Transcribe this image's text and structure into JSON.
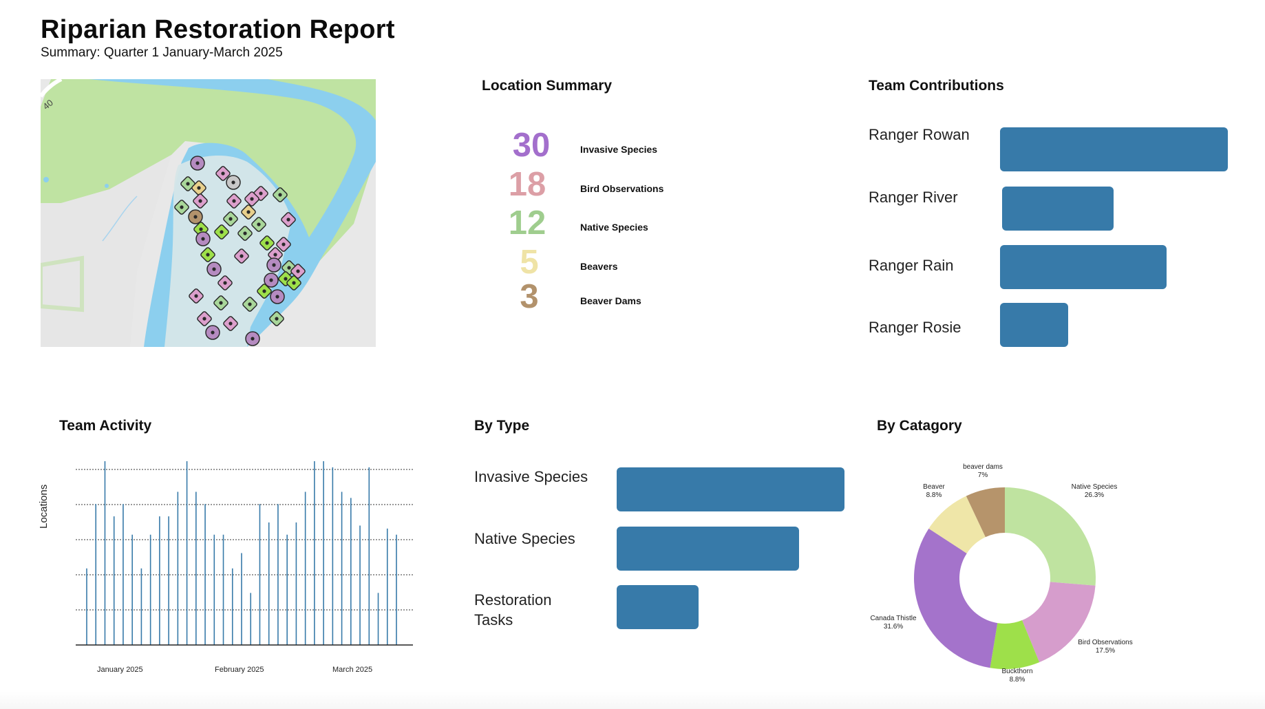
{
  "header": {
    "title": "Riparian Restoration Report",
    "subtitle": "Summary: Quarter 1 January-March 2025"
  },
  "map": {
    "road_label": "40",
    "colors": {
      "water": "#8ccfee",
      "park": "#bfe3a2",
      "land": "#e8e8e8",
      "area": "#cfe4ea"
    }
  },
  "location_summary": {
    "title": "Location Summary",
    "items": [
      {
        "value": "30",
        "label": "Invasive Species",
        "color": "#a36fcc"
      },
      {
        "value": "18",
        "label": "Bird Observations",
        "color": "#dc9fa6"
      },
      {
        "value": "12",
        "label": "Native Species",
        "color": "#9fcd8e"
      },
      {
        "value": "5",
        "label": "Beavers",
        "color": "#efe3a6"
      },
      {
        "value": "3",
        "label": "Beaver Dams",
        "color": "#b2926c"
      }
    ]
  },
  "team_contributions": {
    "title": "Team Contributions",
    "items": [
      {
        "name": "Ranger Rowan",
        "value": 1.0
      },
      {
        "name": "Ranger River",
        "value": 0.49
      },
      {
        "name": "Ranger Rain",
        "value": 0.73
      },
      {
        "name": "Ranger Rosie",
        "value": 0.3
      }
    ]
  },
  "team_activity": {
    "title": "Team Activity",
    "ylabel": "Locations",
    "months": [
      "January 2025",
      "February 2025",
      "March 2025"
    ]
  },
  "by_type": {
    "title": "By Type",
    "items": [
      {
        "label": "Invasive Species",
        "value": 1.0
      },
      {
        "label": "Native Species",
        "value": 0.8
      },
      {
        "label": "Restoration Tasks",
        "value": 0.36
      }
    ]
  },
  "by_category": {
    "title": "By Catagory"
  },
  "chart_data": [
    {
      "type": "bar",
      "title": "Team Activity",
      "xlabel": "",
      "ylabel": "Locations",
      "ylim": [
        0,
        6
      ],
      "grid": true,
      "x_tick_labels": [
        "January 2025",
        "February 2025",
        "March 2025"
      ],
      "values": [
        2.5,
        4.6,
        6.0,
        4.2,
        4.6,
        3.6,
        2.5,
        3.6,
        4.2,
        4.2,
        5.0,
        6.0,
        5.0,
        4.6,
        3.6,
        3.6,
        2.5,
        3.0,
        1.7,
        4.6,
        4.0,
        4.6,
        3.6,
        4.0,
        5.0,
        6.0,
        6.0,
        5.8,
        5.0,
        4.8,
        3.9,
        5.8,
        1.7,
        3.8,
        3.6
      ]
    },
    {
      "type": "pie",
      "title": "By Catagory",
      "categories": [
        "Native Species",
        "Bird Observations",
        "Buckthorn",
        "Canada Thistle",
        "Beaver",
        "beaver dams"
      ],
      "values": [
        26.3,
        17.5,
        8.8,
        31.6,
        8.8,
        7
      ],
      "value_labels": [
        "26.3%",
        "17.5%",
        "8.8%",
        "31.6%",
        "8.8%",
        "7%"
      ],
      "colors": [
        "#bfe3a0",
        "#d69dcc",
        "#9ee04a",
        "#a473cb",
        "#efe6a8",
        "#b6946b"
      ]
    }
  ]
}
